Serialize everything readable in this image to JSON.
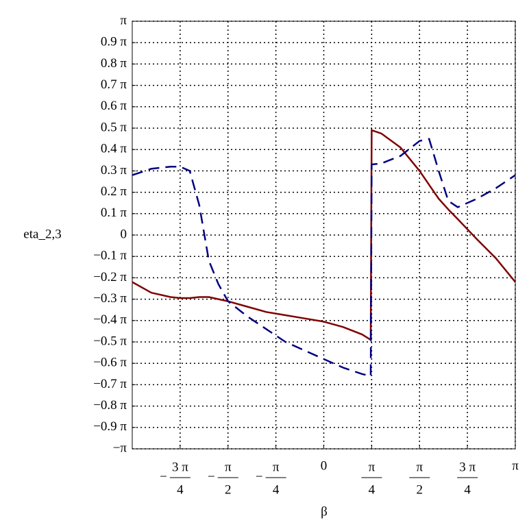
{
  "chart_data": {
    "type": "line",
    "xlabel": "β",
    "ylabel": "eta_2,3",
    "x": [
      -1,
      -0.9,
      -0.8,
      -0.75,
      -0.7,
      -0.65,
      -0.6,
      -0.55,
      -0.5,
      -0.4,
      -0.3,
      -0.2,
      -0.1,
      0,
      0.1,
      0.2,
      0.245,
      0.25,
      0.3,
      0.4,
      0.5,
      0.55,
      0.6,
      0.65,
      0.7,
      0.8,
      0.9,
      1
    ],
    "series": [
      {
        "color": "#800000",
        "dash": false,
        "values": [
          -0.22,
          -0.27,
          -0.29,
          -0.295,
          -0.295,
          -0.29,
          -0.29,
          -0.3,
          -0.31,
          -0.335,
          -0.36,
          -0.375,
          -0.39,
          -0.405,
          -0.43,
          -0.465,
          -0.49,
          0.49,
          0.475,
          0.41,
          0.3,
          0.235,
          0.17,
          0.12,
          0.074,
          -0.02,
          -0.11,
          -0.22
        ]
      },
      {
        "color": "#000080",
        "dash": true,
        "values": [
          0.28,
          0.31,
          0.32,
          0.32,
          0.3,
          0.14,
          -0.12,
          -0.23,
          -0.31,
          -0.38,
          -0.44,
          -0.5,
          -0.54,
          -0.58,
          -0.62,
          -0.65,
          -0.66,
          0.33,
          0.335,
          0.37,
          0.44,
          0.45,
          0.3,
          0.16,
          0.13,
          0.17,
          0.22,
          0.28
        ]
      }
    ],
    "xlim": [
      -1,
      1
    ],
    "ylim": [
      -1,
      1
    ],
    "grid": true,
    "xticks": [
      {
        "value": -0.75,
        "label": {
          "sign": "−",
          "numerator": "3 π",
          "denominator": "4"
        }
      },
      {
        "value": -0.5,
        "label": {
          "sign": "−",
          "numerator": "π",
          "denominator": "2"
        }
      },
      {
        "value": -0.25,
        "label": {
          "sign": "−",
          "numerator": "π",
          "denominator": "4"
        }
      },
      0,
      {
        "value": 0.25,
        "label": {
          "numerator": "π",
          "denominator": "4"
        }
      },
      {
        "value": 0.5,
        "label": {
          "numerator": "π",
          "denominator": "2"
        }
      },
      {
        "value": 0.75,
        "label": {
          "numerator": "3 π",
          "denominator": "4"
        }
      },
      {
        "value": 1,
        "label": "π"
      }
    ],
    "yticks": [
      {
        "value": -1,
        "label": "−π"
      },
      {
        "value": -0.9,
        "label": "−0.9 π"
      },
      {
        "value": -0.8,
        "label": "−0.8 π"
      },
      {
        "value": -0.7,
        "label": "−0.7 π"
      },
      {
        "value": -0.6,
        "label": "−0.6 π"
      },
      {
        "value": -0.5,
        "label": "−0.5 π"
      },
      {
        "value": -0.4,
        "label": "−0.4 π"
      },
      {
        "value": -0.3,
        "label": "−0.3 π"
      },
      {
        "value": -0.2,
        "label": "−0.2 π"
      },
      {
        "value": -0.1,
        "label": "−0.1 π"
      },
      0,
      {
        "value": 0.1,
        "label": "0.1 π"
      },
      {
        "value": 0.2,
        "label": "0.2 π"
      },
      {
        "value": 0.3,
        "label": "0.3 π"
      },
      {
        "value": 0.4,
        "label": "0.4 π"
      },
      {
        "value": 0.5,
        "label": "0.5 π"
      },
      {
        "value": 0.6,
        "label": "0.6 π"
      },
      {
        "value": 0.7,
        "label": "0.7 π"
      },
      {
        "value": 0.8,
        "label": "0.8 π"
      },
      {
        "value": 0.9,
        "label": "0.9 π"
      },
      {
        "value": 1,
        "label": "π"
      }
    ]
  }
}
